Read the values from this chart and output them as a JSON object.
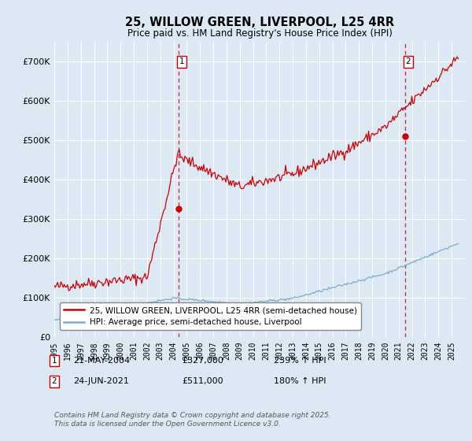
{
  "title": "25, WILLOW GREEN, LIVERPOOL, L25 4RR",
  "subtitle": "Price paid vs. HM Land Registry's House Price Index (HPI)",
  "background_color": "#dce9f5",
  "plot_bg_color": "#dce9f5",
  "ylim": [
    0,
    750000
  ],
  "yticks": [
    0,
    100000,
    200000,
    300000,
    400000,
    500000,
    600000,
    700000
  ],
  "ytick_labels": [
    "£0",
    "£100K",
    "£200K",
    "£300K",
    "£400K",
    "£500K",
    "£600K",
    "£700K"
  ],
  "red_line_color": "#cc0000",
  "blue_line_color": "#7aabcf",
  "marker1_year": 2004.38,
  "marker1_value": 327000,
  "marker2_year": 2021.47,
  "marker2_value": 511000,
  "legend_line1": "25, WILLOW GREEN, LIVERPOOL, L25 4RR (semi-detached house)",
  "legend_line2": "HPI: Average price, semi-detached house, Liverpool",
  "note1_date": "21-MAY-2004",
  "note1_price": "£327,000",
  "note1_hpi": "239% ↑ HPI",
  "note2_date": "24-JUN-2021",
  "note2_price": "£511,000",
  "note2_hpi": "180% ↑ HPI",
  "footer": "Contains HM Land Registry data © Crown copyright and database right 2025.\nThis data is licensed under the Open Government Licence v3.0."
}
